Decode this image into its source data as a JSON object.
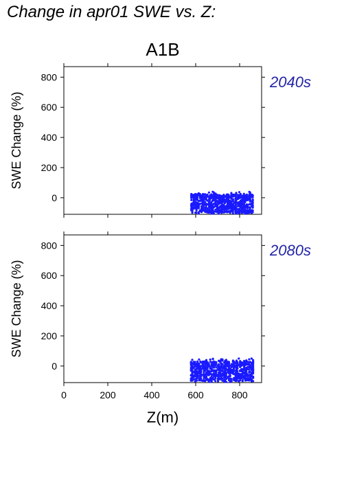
{
  "page": {
    "title": "Change in apr01 SWE vs. Z:"
  },
  "colors": {
    "points": "#1a1aff",
    "period_label": "#2323a8",
    "axis": "#000000"
  },
  "chart_data": [
    {
      "type": "scatter",
      "title": "A1B",
      "period_label": "2040s",
      "xlabel": "",
      "ylabel": "SWE Change (%)",
      "xlim": [
        0,
        900
      ],
      "ylim": [
        -110,
        870
      ],
      "yticks": [
        0,
        200,
        400,
        600,
        800
      ],
      "xticks": [
        0,
        200,
        400,
        600,
        800
      ],
      "show_x_tick_labels": false,
      "grid": false,
      "point_cloud": {
        "x_range": [
          580,
          860
        ],
        "y_range": [
          -110,
          40
        ],
        "y_dense_band": [
          -100,
          25
        ]
      }
    },
    {
      "type": "scatter",
      "title": "",
      "period_label": "2080s",
      "xlabel": "Z(m)",
      "ylabel": "SWE Change (%)",
      "xlim": [
        0,
        900
      ],
      "ylim": [
        -110,
        870
      ],
      "yticks": [
        0,
        200,
        400,
        600,
        800
      ],
      "xticks": [
        0,
        200,
        400,
        600,
        800
      ],
      "show_x_tick_labels": true,
      "grid": false,
      "point_cloud": {
        "x_range": [
          580,
          860
        ],
        "y_range": [
          -110,
          50
        ],
        "y_dense_band": [
          -100,
          30
        ]
      }
    }
  ]
}
